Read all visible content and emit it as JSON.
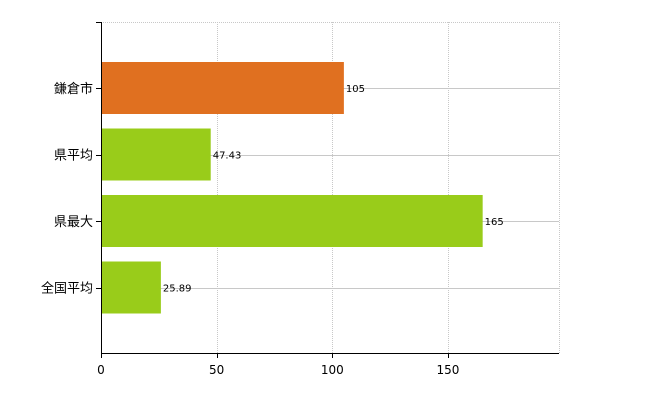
{
  "chart_data": {
    "type": "bar",
    "orientation": "horizontal",
    "categories": [
      "鎌倉市",
      "県平均",
      "県最大",
      "全国平均"
    ],
    "values": [
      105,
      47.43,
      165,
      25.89
    ],
    "value_labels": [
      "105",
      "47.43",
      "165",
      "25.89"
    ],
    "bar_colors": [
      "#e07020",
      "#99cc1a",
      "#99cc1a",
      "#99cc1a"
    ],
    "xlim": [
      0,
      198
    ],
    "x_ticks": [
      0,
      50,
      100,
      150
    ],
    "grid": true,
    "title": "",
    "xlabel": "",
    "ylabel": ""
  },
  "colors": {
    "axis": "#000000",
    "grid": "#c8c8c8",
    "highlight_bar": "#e07020",
    "default_bar": "#99cc1a"
  }
}
